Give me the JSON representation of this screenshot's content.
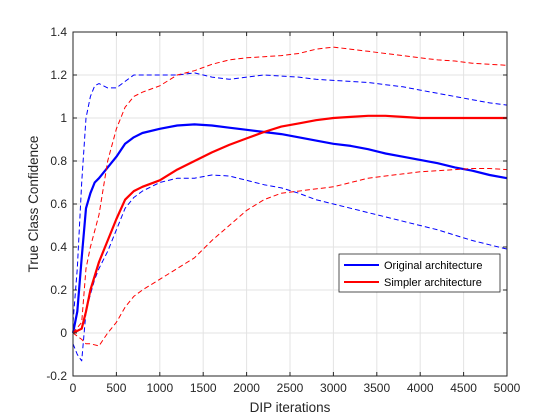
{
  "chart_data": {
    "type": "line",
    "title": "",
    "xlabel": "DIP iterations",
    "ylabel": "True Class Confidence",
    "xlim": [
      0,
      5000
    ],
    "ylim": [
      -0.2,
      1.4
    ],
    "xticks": [
      0,
      500,
      1000,
      1500,
      2000,
      2500,
      3000,
      3500,
      4000,
      4500,
      5000
    ],
    "yticks": [
      -0.2,
      0,
      0.2,
      0.4,
      0.6,
      0.8,
      1,
      1.2,
      1.4
    ],
    "ytick_labels": [
      "-0.2",
      "0",
      "0.2",
      "0.4",
      "0.6",
      "0.8",
      "1",
      "1.2",
      "1.4"
    ],
    "grid": true,
    "legend_position": "lower-right",
    "legend": [
      "Original architecture",
      "Simpler architecture"
    ],
    "series": [
      {
        "name": "Original architecture",
        "color": "#0000ff",
        "style": "solid",
        "x": [
          0,
          50,
          100,
          150,
          200,
          250,
          300,
          400,
          500,
          600,
          700,
          800,
          1000,
          1200,
          1400,
          1600,
          1800,
          2000,
          2200,
          2400,
          2600,
          2800,
          3000,
          3200,
          3400,
          3600,
          3800,
          4000,
          4200,
          4400,
          4600,
          4800,
          5000
        ],
        "y": [
          0.0,
          0.1,
          0.35,
          0.58,
          0.65,
          0.7,
          0.72,
          0.77,
          0.82,
          0.88,
          0.91,
          0.93,
          0.95,
          0.965,
          0.97,
          0.965,
          0.955,
          0.945,
          0.935,
          0.925,
          0.91,
          0.895,
          0.88,
          0.87,
          0.855,
          0.835,
          0.82,
          0.805,
          0.79,
          0.77,
          0.755,
          0.735,
          0.72
        ]
      },
      {
        "name": "",
        "color": "#0000ff",
        "style": "dashed",
        "x": [
          0,
          50,
          100,
          150,
          200,
          250,
          300,
          350,
          400,
          500,
          600,
          700,
          800,
          1000,
          1200,
          1400,
          1600,
          1800,
          2000,
          2200,
          2400,
          2600,
          2800,
          3000,
          3200,
          3400,
          3600,
          3800,
          4000,
          4200,
          4400,
          4600,
          4800,
          5000
        ],
        "y": [
          0.05,
          0.3,
          0.7,
          1.0,
          1.1,
          1.15,
          1.16,
          1.15,
          1.14,
          1.14,
          1.17,
          1.2,
          1.2,
          1.2,
          1.2,
          1.21,
          1.19,
          1.18,
          1.19,
          1.2,
          1.195,
          1.19,
          1.18,
          1.175,
          1.17,
          1.165,
          1.155,
          1.145,
          1.13,
          1.115,
          1.1,
          1.085,
          1.07,
          1.06
        ]
      },
      {
        "name": "",
        "color": "#0000ff",
        "style": "dashed",
        "x": [
          0,
          50,
          100,
          150,
          200,
          250,
          300,
          400,
          500,
          600,
          700,
          800,
          1000,
          1200,
          1400,
          1600,
          1800,
          2000,
          2200,
          2400,
          2600,
          2800,
          3000,
          3200,
          3400,
          3600,
          3800,
          4000,
          4200,
          4400,
          4600,
          4800,
          5000
        ],
        "y": [
          -0.05,
          -0.1,
          -0.13,
          0.1,
          0.18,
          0.25,
          0.3,
          0.38,
          0.48,
          0.58,
          0.63,
          0.66,
          0.7,
          0.72,
          0.72,
          0.735,
          0.73,
          0.71,
          0.69,
          0.675,
          0.65,
          0.62,
          0.6,
          0.58,
          0.56,
          0.54,
          0.52,
          0.5,
          0.48,
          0.455,
          0.43,
          0.41,
          0.39
        ]
      },
      {
        "name": "Simpler architecture",
        "color": "#ff0000",
        "style": "solid",
        "x": [
          0,
          100,
          150,
          200,
          300,
          400,
          500,
          600,
          700,
          800,
          1000,
          1200,
          1400,
          1600,
          1800,
          2000,
          2200,
          2400,
          2600,
          2800,
          3000,
          3200,
          3400,
          3600,
          3800,
          4000,
          4200,
          4400,
          4600,
          4800,
          5000
        ],
        "y": [
          0.0,
          0.02,
          0.1,
          0.2,
          0.33,
          0.43,
          0.53,
          0.62,
          0.66,
          0.68,
          0.71,
          0.76,
          0.8,
          0.84,
          0.875,
          0.905,
          0.935,
          0.96,
          0.975,
          0.99,
          1.0,
          1.005,
          1.01,
          1.01,
          1.005,
          1.0,
          1.0,
          1.0,
          1.0,
          1.0,
          1.0
        ]
      },
      {
        "name": "",
        "color": "#ff0000",
        "style": "dashed",
        "x": [
          0,
          100,
          150,
          200,
          300,
          400,
          500,
          600,
          700,
          800,
          1000,
          1200,
          1400,
          1600,
          1800,
          2000,
          2200,
          2400,
          2600,
          2800,
          3000,
          3200,
          3400,
          3600,
          3800,
          4000,
          4200,
          4400,
          4600,
          4800,
          5000
        ],
        "y": [
          0.0,
          0.05,
          0.3,
          0.4,
          0.55,
          0.8,
          0.95,
          1.05,
          1.1,
          1.12,
          1.15,
          1.2,
          1.22,
          1.25,
          1.27,
          1.28,
          1.285,
          1.29,
          1.3,
          1.32,
          1.33,
          1.32,
          1.31,
          1.3,
          1.29,
          1.28,
          1.27,
          1.265,
          1.255,
          1.25,
          1.245
        ]
      },
      {
        "name": "",
        "color": "#ff0000",
        "style": "dashed",
        "x": [
          0,
          100,
          150,
          200,
          300,
          400,
          500,
          600,
          700,
          800,
          1000,
          1200,
          1400,
          1600,
          1800,
          2000,
          2200,
          2400,
          2600,
          2800,
          3000,
          3200,
          3400,
          3600,
          3800,
          4000,
          4200,
          4400,
          4600,
          4800,
          5000
        ],
        "y": [
          0.0,
          -0.03,
          -0.05,
          -0.05,
          -0.06,
          0.0,
          0.05,
          0.12,
          0.17,
          0.2,
          0.25,
          0.3,
          0.35,
          0.43,
          0.5,
          0.57,
          0.62,
          0.65,
          0.66,
          0.67,
          0.68,
          0.7,
          0.72,
          0.73,
          0.74,
          0.75,
          0.755,
          0.76,
          0.765,
          0.765,
          0.76
        ]
      }
    ]
  }
}
